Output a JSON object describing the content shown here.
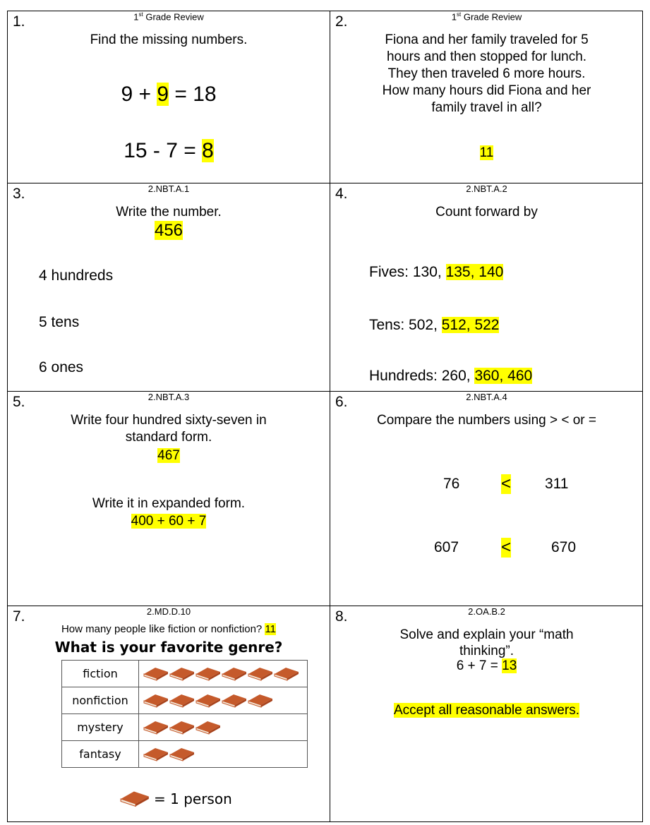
{
  "cells": [
    {
      "number": "1.",
      "standard": "1st Grade Review",
      "prompt": "Find the missing numbers.",
      "eq1": {
        "a": "9 + ",
        "ans": "9",
        "b": " = 18"
      },
      "eq2": {
        "a": "15 - 7 = ",
        "ans": "8"
      }
    },
    {
      "number": "2.",
      "standard": "1st Grade Review",
      "prompt_lines": [
        "Fiona and her family traveled for 5",
        "hours and then stopped for lunch.",
        "They then traveled 6 more hours.",
        "How many hours did Fiona and her",
        "family travel in all?"
      ],
      "answer": "11"
    },
    {
      "number": "3.",
      "standard": "2.NBT.A.1",
      "prompt": "Write the number.",
      "answer": "456",
      "lines": [
        "4 hundreds",
        "5 tens",
        "6 ones"
      ]
    },
    {
      "number": "4.",
      "standard": "2.NBT.A.2",
      "prompt": "Count forward by",
      "rows": [
        {
          "label": "Fives: 130, ",
          "answer": "135, 140"
        },
        {
          "label": "Tens: 502, ",
          "answer": "512, 522"
        },
        {
          "label": "Hundreds: 260, ",
          "answer": "360, 460"
        }
      ]
    },
    {
      "number": "5.",
      "standard": "2.NBT.A.3",
      "prompt_lines": [
        "Write four hundred sixty-seven in",
        "standard form."
      ],
      "answer1": "467",
      "prompt2": "Write it in expanded form.",
      "answer2": "400 + 60 + 7"
    },
    {
      "number": "6.",
      "standard": "2.NBT.A.4",
      "prompt": "Compare the numbers using > < or =",
      "comparisons": [
        {
          "left": "76",
          "symbol": "<",
          "right": "311"
        },
        {
          "left": "607",
          "symbol": "<",
          "right": "670"
        }
      ]
    },
    {
      "number": "7.",
      "standard": "2.MD.D.10",
      "prompt": "How many people like fiction or nonfiction? ",
      "answer": "11",
      "graph_title": "What is your favorite genre?",
      "key_text": "= 1 person"
    },
    {
      "number": "8.",
      "standard": "2.OA.B.2",
      "prompt_lines": [
        "Solve and explain your “math",
        "thinking”."
      ],
      "eq": {
        "a": "6 + 7 = ",
        "ans": "13"
      },
      "note": "Accept all reasonable answers."
    }
  ],
  "chart_data": {
    "type": "pictograph",
    "title": "What is your favorite genre?",
    "categories": [
      "fiction",
      "nonfiction",
      "mystery",
      "fantasy"
    ],
    "values": [
      6,
      5,
      3,
      2
    ],
    "key": "= 1 person"
  },
  "colors": {
    "highlight": "#ffff00",
    "book": "#c55a2b"
  }
}
